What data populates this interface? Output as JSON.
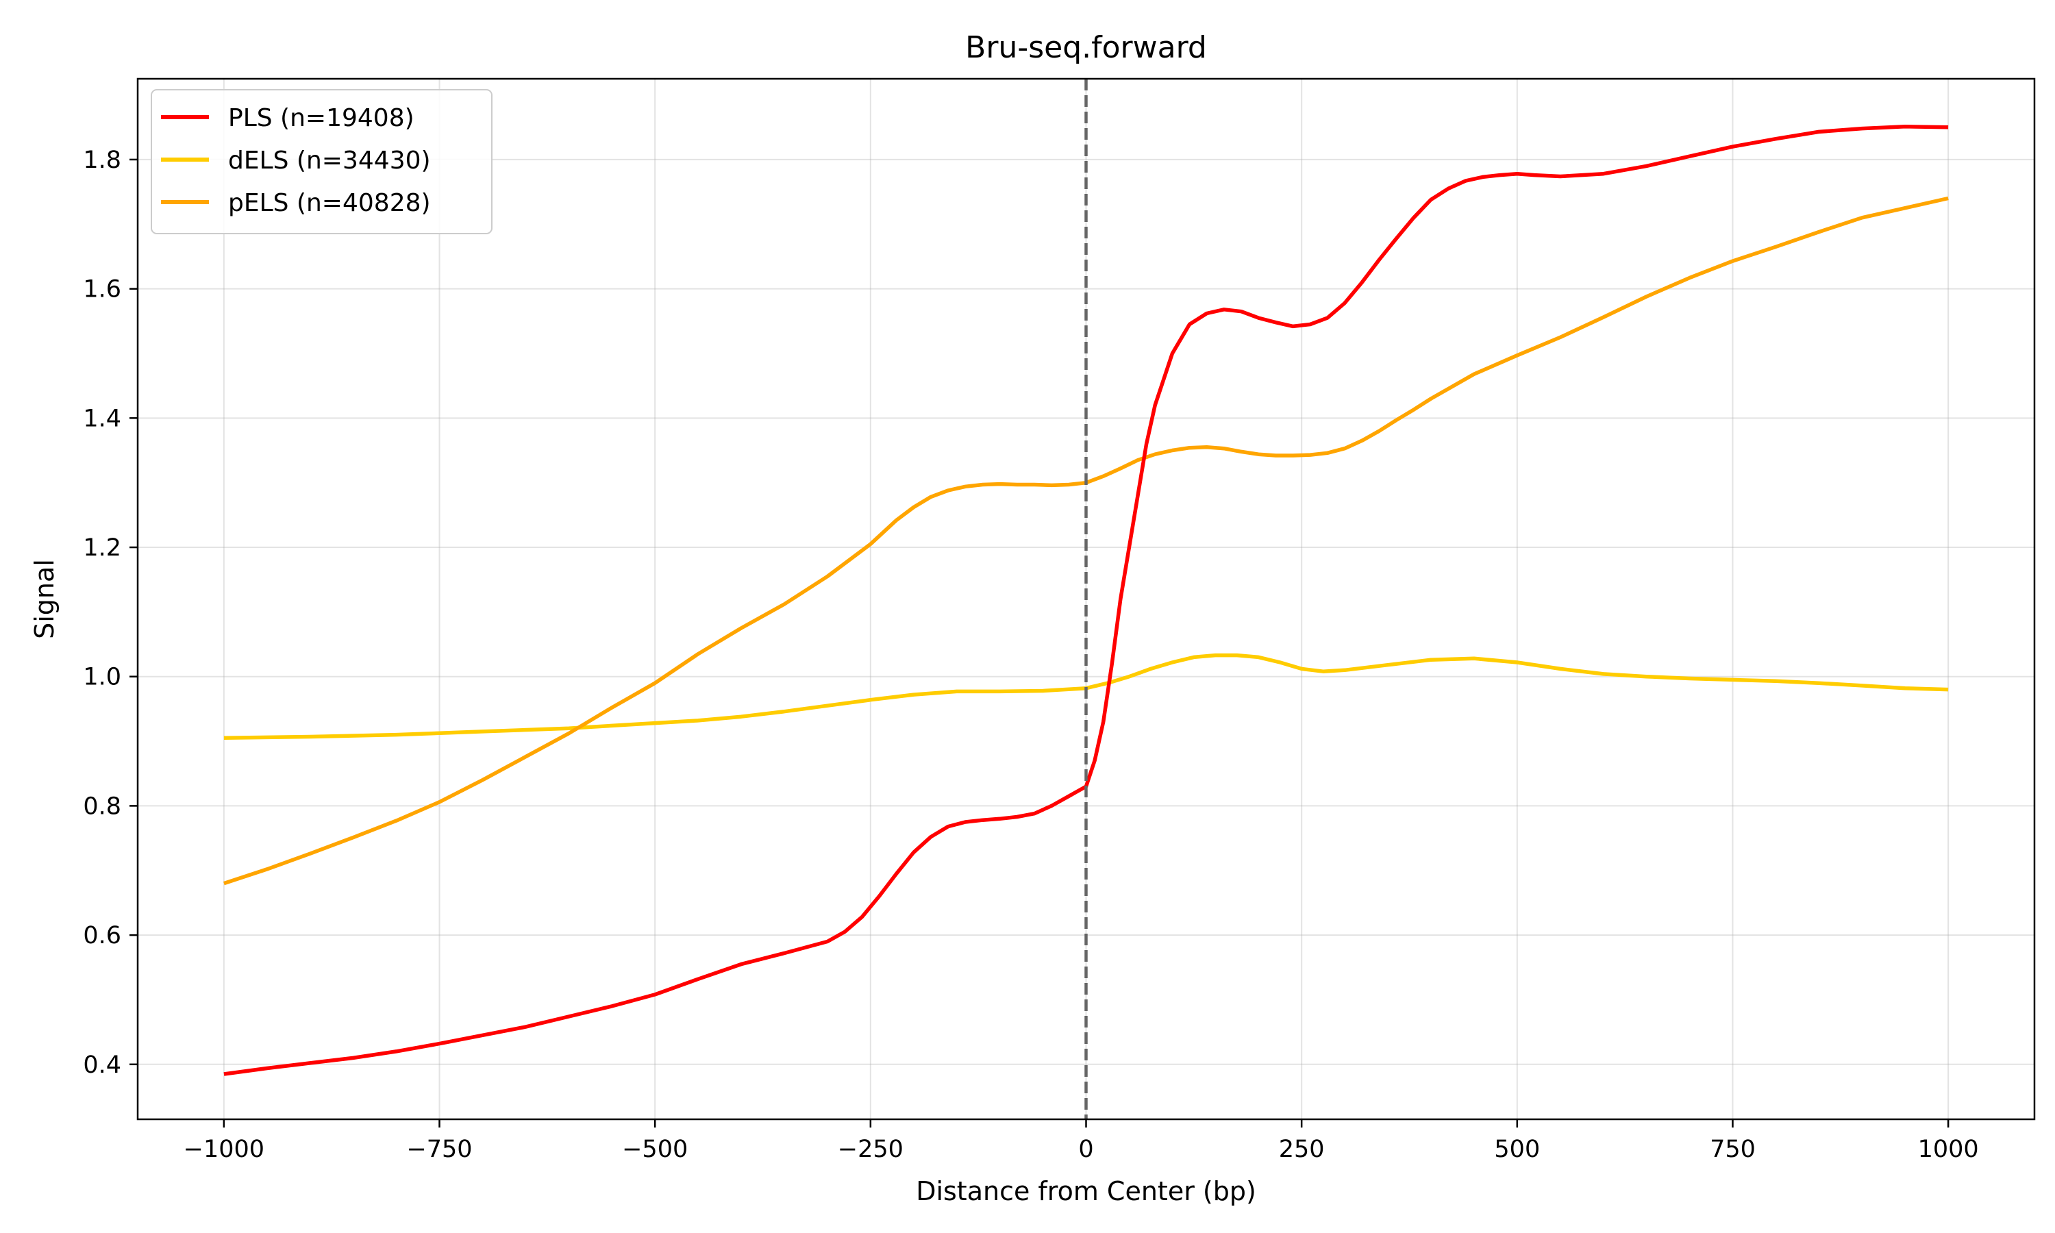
{
  "chart_data": {
    "type": "line",
    "title": "Bru-seq.forward",
    "xlabel": "Distance from Center (bp)",
    "ylabel": "Signal",
    "xlim": [
      -1100,
      1100
    ],
    "ylim": [
      0.315,
      1.925
    ],
    "xticks": [
      -1000,
      -750,
      -500,
      -250,
      0,
      250,
      500,
      750,
      1000
    ],
    "xtick_labels": [
      "−1000",
      "−750",
      "−500",
      "−250",
      "0",
      "250",
      "500",
      "750",
      "1000"
    ],
    "yticks": [
      0.4,
      0.6,
      0.8,
      1.0,
      1.2,
      1.4,
      1.6,
      1.8
    ],
    "ytick_labels": [
      "0.4",
      "0.6",
      "0.8",
      "1.0",
      "1.2",
      "1.4",
      "1.6",
      "1.8"
    ],
    "grid": true,
    "legend_position": "top-left",
    "vline": {
      "x": 0,
      "style": "dashed",
      "color": "#666666"
    },
    "series": [
      {
        "name": "PLS (n=19408)",
        "color": "#ff0000",
        "x": [
          -1000,
          -950,
          -900,
          -850,
          -800,
          -750,
          -700,
          -650,
          -600,
          -550,
          -500,
          -450,
          -400,
          -350,
          -300,
          -280,
          -260,
          -240,
          -220,
          -200,
          -180,
          -160,
          -140,
          -120,
          -100,
          -80,
          -60,
          -40,
          -20,
          0,
          10,
          20,
          30,
          40,
          50,
          60,
          70,
          80,
          90,
          100,
          120,
          140,
          160,
          180,
          200,
          220,
          240,
          260,
          280,
          300,
          320,
          340,
          360,
          380,
          400,
          420,
          440,
          460,
          480,
          500,
          520,
          550,
          600,
          650,
          700,
          750,
          800,
          850,
          900,
          950,
          1000
        ],
        "y": [
          0.385,
          0.394,
          0.402,
          0.41,
          0.42,
          0.432,
          0.445,
          0.458,
          0.474,
          0.49,
          0.508,
          0.532,
          0.555,
          0.572,
          0.59,
          0.605,
          0.628,
          0.66,
          0.695,
          0.728,
          0.752,
          0.768,
          0.775,
          0.778,
          0.78,
          0.783,
          0.788,
          0.8,
          0.815,
          0.83,
          0.87,
          0.93,
          1.02,
          1.12,
          1.2,
          1.28,
          1.36,
          1.42,
          1.46,
          1.5,
          1.545,
          1.562,
          1.568,
          1.565,
          1.555,
          1.548,
          1.542,
          1.545,
          1.555,
          1.578,
          1.61,
          1.645,
          1.678,
          1.71,
          1.738,
          1.755,
          1.767,
          1.773,
          1.776,
          1.778,
          1.776,
          1.774,
          1.778,
          1.79,
          1.805,
          1.82,
          1.832,
          1.843,
          1.848,
          1.851,
          1.85
        ]
      },
      {
        "name": "dELS (n=34430)",
        "color": "#ffcc00",
        "x": [
          -1000,
          -900,
          -800,
          -700,
          -600,
          -550,
          -500,
          -450,
          -400,
          -350,
          -300,
          -250,
          -200,
          -150,
          -100,
          -50,
          0,
          25,
          50,
          75,
          100,
          125,
          150,
          175,
          200,
          225,
          250,
          275,
          300,
          350,
          400,
          450,
          500,
          550,
          600,
          650,
          700,
          750,
          800,
          850,
          900,
          950,
          1000
        ],
        "y": [
          0.905,
          0.907,
          0.91,
          0.915,
          0.92,
          0.924,
          0.928,
          0.932,
          0.938,
          0.946,
          0.955,
          0.964,
          0.972,
          0.977,
          0.977,
          0.978,
          0.982,
          0.99,
          1.0,
          1.012,
          1.022,
          1.03,
          1.033,
          1.033,
          1.03,
          1.022,
          1.012,
          1.008,
          1.01,
          1.018,
          1.026,
          1.028,
          1.022,
          1.012,
          1.004,
          1.0,
          0.997,
          0.995,
          0.993,
          0.99,
          0.986,
          0.982,
          0.98
        ]
      },
      {
        "name": "pELS (n=40828)",
        "color": "#ffa500",
        "x": [
          -1000,
          -950,
          -900,
          -850,
          -800,
          -750,
          -700,
          -650,
          -600,
          -550,
          -500,
          -450,
          -400,
          -350,
          -300,
          -250,
          -220,
          -200,
          -180,
          -160,
          -140,
          -120,
          -100,
          -80,
          -60,
          -40,
          -20,
          0,
          20,
          40,
          60,
          80,
          100,
          120,
          140,
          160,
          180,
          200,
          220,
          240,
          260,
          280,
          300,
          320,
          340,
          360,
          380,
          400,
          450,
          500,
          550,
          600,
          650,
          700,
          750,
          800,
          850,
          900,
          950,
          1000
        ],
        "y": [
          0.68,
          0.702,
          0.726,
          0.751,
          0.777,
          0.806,
          0.84,
          0.876,
          0.912,
          0.952,
          0.99,
          1.035,
          1.075,
          1.112,
          1.155,
          1.205,
          1.242,
          1.262,
          1.278,
          1.288,
          1.294,
          1.297,
          1.298,
          1.297,
          1.297,
          1.296,
          1.297,
          1.3,
          1.31,
          1.322,
          1.335,
          1.344,
          1.35,
          1.354,
          1.355,
          1.353,
          1.348,
          1.344,
          1.342,
          1.342,
          1.343,
          1.346,
          1.353,
          1.365,
          1.38,
          1.397,
          1.413,
          1.43,
          1.468,
          1.497,
          1.525,
          1.556,
          1.588,
          1.617,
          1.643,
          1.665,
          1.688,
          1.71,
          1.725,
          1.74
        ]
      }
    ]
  }
}
